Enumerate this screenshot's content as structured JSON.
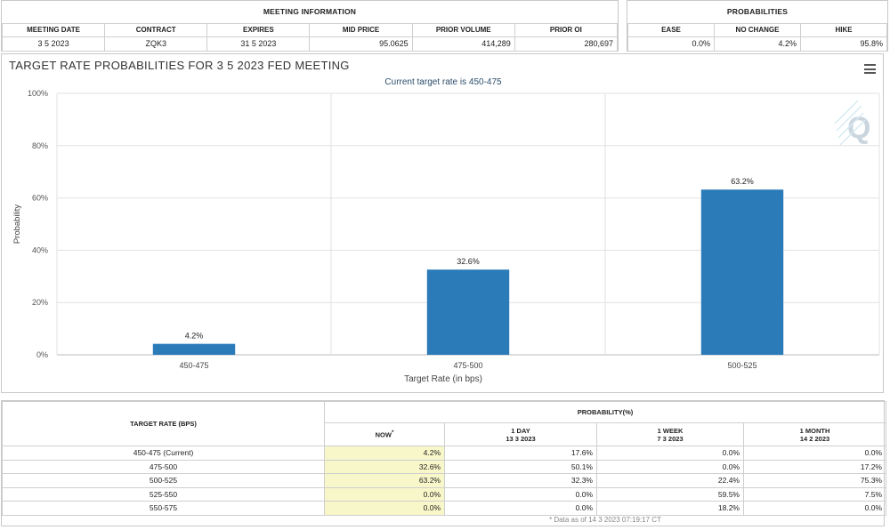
{
  "meeting_info": {
    "section_title": "MEETING INFORMATION",
    "headers": [
      "MEETING DATE",
      "CONTRACT",
      "EXPIRES",
      "MID PRICE",
      "PRIOR VOLUME",
      "PRIOR OI"
    ],
    "values": [
      "3 5 2023",
      "ZQK3",
      "31 5 2023",
      "95.0625",
      "414,289",
      "280,697"
    ]
  },
  "probabilities": {
    "section_title": "PROBABILITIES",
    "headers": [
      "EASE",
      "NO CHANGE",
      "HIKE"
    ],
    "values": [
      "0.0%",
      "4.2%",
      "95.8%"
    ]
  },
  "chart_panel": {
    "title": "TARGET RATE PROBABILITIES FOR 3 5 2023 FED MEETING",
    "menu_icon": "hamburger-menu-icon",
    "watermark_icon": "q-logo-icon"
  },
  "chart_data": {
    "type": "bar",
    "title": "TARGET RATE PROBABILITIES FOR 3 5 2023 FED MEETING",
    "subtitle": "Current target rate is 450-475",
    "categories": [
      "450-475",
      "475-500",
      "500-525"
    ],
    "values": [
      4.2,
      32.6,
      63.2
    ],
    "data_labels": [
      "4.2%",
      "32.6%",
      "63.2%"
    ],
    "xlabel": "Target Rate (in bps)",
    "ylabel": "Probability",
    "ylim": [
      0,
      100
    ],
    "yticks": [
      0,
      20,
      40,
      60,
      80,
      100
    ],
    "ytick_labels": [
      "0%",
      "20%",
      "40%",
      "60%",
      "80%",
      "100%"
    ],
    "grid": true,
    "bar_color": "#2b7bb9"
  },
  "prob_table": {
    "target_header": "TARGET RATE (BPS)",
    "prob_header": "PROBABILITY(%)",
    "columns": [
      {
        "line1": "NOW",
        "line2": "",
        "mark": "*"
      },
      {
        "line1": "1 DAY",
        "line2": "13 3 2023"
      },
      {
        "line1": "1 WEEK",
        "line2": "7 3 2023"
      },
      {
        "line1": "1 MONTH",
        "line2": "14 2 2023"
      }
    ],
    "rows": [
      {
        "rate": "450-475 (Current)",
        "vals": [
          "4.2%",
          "17.6%",
          "0.0%",
          "0.0%"
        ]
      },
      {
        "rate": "475-500",
        "vals": [
          "32.6%",
          "50.1%",
          "0.0%",
          "17.2%"
        ]
      },
      {
        "rate": "500-525",
        "vals": [
          "63.2%",
          "32.3%",
          "22.4%",
          "75.3%"
        ]
      },
      {
        "rate": "525-550",
        "vals": [
          "0.0%",
          "0.0%",
          "59.5%",
          "7.5%"
        ]
      },
      {
        "rate": "550-575",
        "vals": [
          "0.0%",
          "0.0%",
          "18.2%",
          "0.0%"
        ]
      }
    ],
    "footnote": "* Data as of 14 3 2023 07:19:17 CT"
  }
}
